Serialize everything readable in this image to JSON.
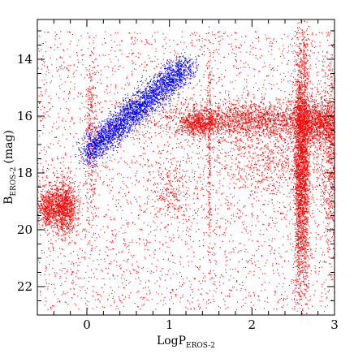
{
  "chart_data": {
    "type": "scatter",
    "title": "",
    "xlabel": "LogP",
    "xlabel_subscript": "EROS-2",
    "ylabel": "B",
    "ylabel_subscript": "EROS-2",
    "ylabel_unit": "(mag)",
    "xlim": [
      -0.6,
      3.0
    ],
    "ylim": [
      23.0,
      12.6
    ],
    "y_inverted": true,
    "grid": false,
    "x_ticks": [
      {
        "value": 0,
        "label": "0"
      },
      {
        "value": 1,
        "label": "1"
      },
      {
        "value": 2,
        "label": "2"
      },
      {
        "value": 3,
        "label": "3"
      }
    ],
    "y_ticks": [
      {
        "value": 14,
        "label": "14"
      },
      {
        "value": 16,
        "label": "16"
      },
      {
        "value": 18,
        "label": "18"
      },
      {
        "value": 20,
        "label": "20"
      },
      {
        "value": 22,
        "label": "22"
      }
    ],
    "series": [
      {
        "color": "#ff0000",
        "point_groups": [
          {
            "x_center": -0.47,
            "x_spread": 0.07,
            "y_center": 19.2,
            "y_spread": 0.35,
            "count": 600
          },
          {
            "x_center": -0.27,
            "x_spread": 0.07,
            "y_center": 19.2,
            "y_spread": 0.45,
            "count": 900
          },
          {
            "x_center": 1.35,
            "x_spread": 0.12,
            "y_center": 16.25,
            "y_spread": 0.2,
            "count": 500
          },
          {
            "x_center": 1.9,
            "x_spread": 0.55,
            "y_center": 16.1,
            "y_spread": 0.3,
            "count": 1800
          },
          {
            "x_center": 2.3,
            "x_spread": 0.4,
            "y_center": 17.5,
            "y_spread": 0.9,
            "count": 900
          },
          {
            "x_center": 2.56,
            "x_spread": 0.025,
            "y_center": 17.8,
            "y_spread": 2.2,
            "count": 1300
          },
          {
            "x_center": 2.63,
            "x_spread": 0.03,
            "y_center": 17.5,
            "y_spread": 2.3,
            "count": 1500
          },
          {
            "x_center": 2.8,
            "x_spread": 0.2,
            "y_center": 16.2,
            "y_spread": 0.4,
            "count": 1300
          },
          {
            "x_center": 2.95,
            "x_spread": 0.05,
            "y_center": 17.5,
            "y_spread": 1.8,
            "count": 600
          },
          {
            "x_center": 1.0,
            "x_spread": 0.15,
            "y_center": 18.6,
            "y_spread": 0.5,
            "count": 250
          },
          {
            "x_center": 0.05,
            "x_spread": 0.03,
            "y_center": 17.0,
            "y_spread": 1.5,
            "count": 300
          },
          {
            "x_center": 1.48,
            "x_spread": 0.01,
            "y_center": 17.0,
            "y_spread": 2.0,
            "count": 200
          }
        ],
        "background": {
          "x_range": [
            -0.6,
            3.0
          ],
          "y_range": [
            13.0,
            22.8
          ],
          "count": 3500
        }
      },
      {
        "color": "#0000ff",
        "point_groups": [
          {
            "x_start": 0.0,
            "y_start": 17.3,
            "x_end": 1.2,
            "y_end": 14.2,
            "width": 0.55,
            "count": 3000
          }
        ]
      }
    ]
  }
}
